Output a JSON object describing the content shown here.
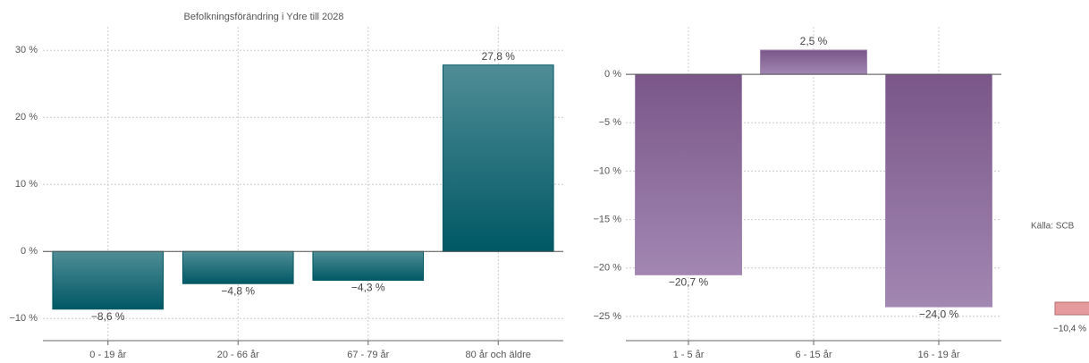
{
  "chart_data": [
    {
      "type": "bar",
      "title": "Befolkningsförändring i Ydre till 2028",
      "categories": [
        "0 - 19 år",
        "20 - 66 år",
        "67 - 79 år",
        "80 år och äldre"
      ],
      "values": [
        -8.6,
        -4.8,
        -4.3,
        27.8
      ],
      "value_labels": [
        "−8,6 %",
        "−4,8 %",
        "−4,3 %",
        "27,8 %"
      ],
      "colors": [
        "#4f8d96",
        "#005865"
      ],
      "ylim": [
        -13.3,
        33.5
      ],
      "yticks": [
        {
          "value": -10,
          "label": "−10 %"
        },
        {
          "value": 0,
          "label": "0 %"
        },
        {
          "value": 10,
          "label": "10 %"
        },
        {
          "value": 20,
          "label": "20 %"
        },
        {
          "value": 30,
          "label": "30 %"
        }
      ],
      "grid": true
    },
    {
      "type": "bar",
      "categories": [
        "1 - 5 år",
        "6 - 15 år",
        "16 - 19 år"
      ],
      "values": [
        -20.7,
        2.5,
        -24.0
      ],
      "value_labels": [
        "−20,7 %",
        "2,5 %",
        "−24,0 %"
      ],
      "colors": [
        "#7a5689",
        "#a287b2"
      ],
      "ylim": [
        -27.5,
        4.9
      ],
      "yticks": [
        {
          "value": -25,
          "label": "−25 %"
        },
        {
          "value": -20,
          "label": "−20 %"
        },
        {
          "value": -15,
          "label": "−15 %"
        },
        {
          "value": -10,
          "label": "−10 %"
        },
        {
          "value": -5,
          "label": "−5 %"
        },
        {
          "value": 0,
          "label": "0 %"
        }
      ],
      "grid": true
    },
    {
      "type": "bar",
      "values": [
        -10.4
      ],
      "value_labels": [
        "−10,4 %"
      ],
      "colors": [
        "#e59a9c",
        "#e59a9c"
      ]
    }
  ],
  "source": "Källa: SCB"
}
